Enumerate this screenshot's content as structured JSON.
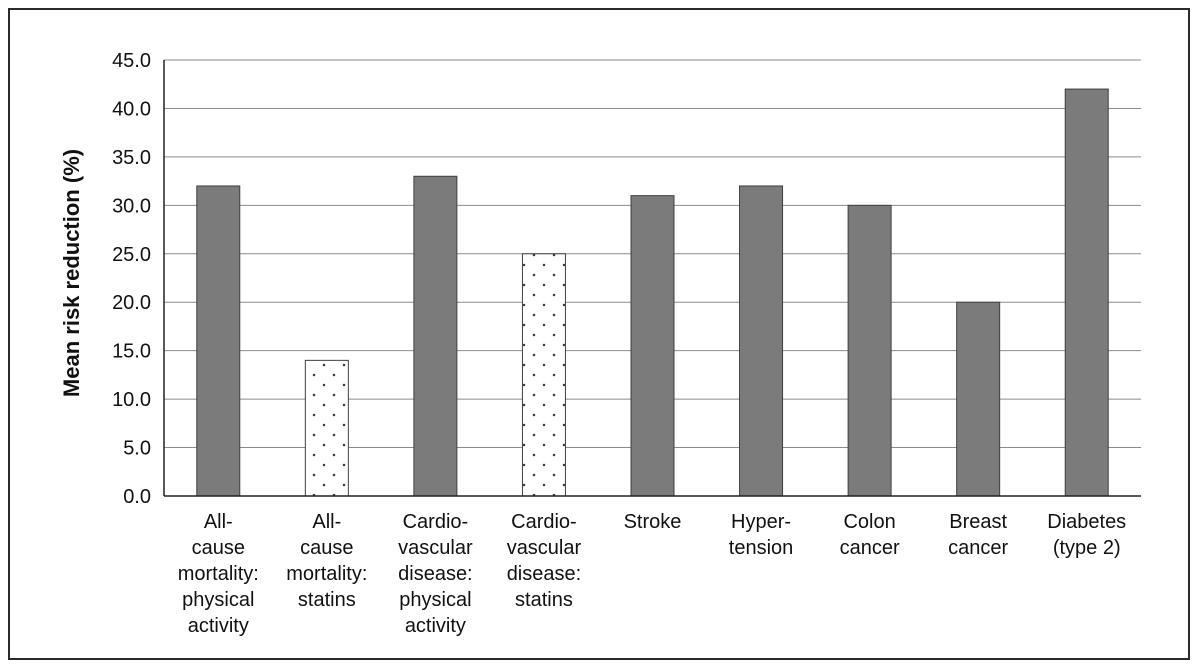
{
  "chart_data": {
    "type": "bar",
    "ylabel": "Mean risk reduction (%)",
    "xlabel": "",
    "ylim": [
      0,
      45
    ],
    "yticks": [
      "0.0",
      "5.0",
      "10.0",
      "15.0",
      "20.0",
      "25.0",
      "30.0",
      "35.0",
      "40.0",
      "45.0"
    ],
    "grid": true,
    "categories": [
      "All-\ncause\nmortality:\nphysical\nactivity",
      "All-\ncause\nmortality:\nstatins",
      "Cardio-\nvascular\ndisease:\nphysical\nactivity",
      "Cardio-\nvascular\ndisease:\nstatins",
      "Stroke",
      "Hyper-\ntension",
      "Colon\ncancer",
      "Breast\ncancer",
      "Diabetes\n(type 2)"
    ],
    "values": [
      32,
      14,
      33,
      25,
      31,
      32,
      30,
      20,
      42
    ],
    "bar_styles": [
      "solid",
      "dotted",
      "solid",
      "dotted",
      "solid",
      "solid",
      "solid",
      "solid",
      "solid"
    ],
    "colors": {
      "solid_fill": "#7b7b7b",
      "bar_stroke": "#3f3f3f",
      "dotted_fill": "#ffffff",
      "dot": "#3a3a3a",
      "grid": "#8b8b8b",
      "axis": "#222222",
      "frame": "#2b2b2b"
    }
  }
}
